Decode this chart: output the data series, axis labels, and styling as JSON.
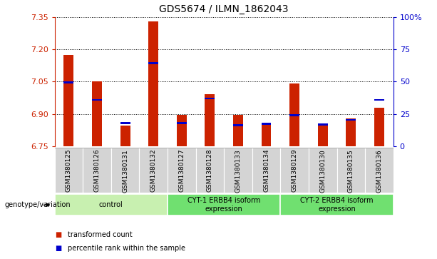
{
  "title": "GDS5674 / ILMN_1862043",
  "samples": [
    "GSM1380125",
    "GSM1380126",
    "GSM1380131",
    "GSM1380132",
    "GSM1380127",
    "GSM1380128",
    "GSM1380133",
    "GSM1380134",
    "GSM1380129",
    "GSM1380130",
    "GSM1380135",
    "GSM1380136"
  ],
  "red_values": [
    7.175,
    7.05,
    6.845,
    7.33,
    6.895,
    6.99,
    6.895,
    6.855,
    7.04,
    6.855,
    6.88,
    6.93
  ],
  "blue_values": [
    7.047,
    6.965,
    6.858,
    7.135,
    6.858,
    6.972,
    6.847,
    6.855,
    6.895,
    6.852,
    6.873,
    6.965
  ],
  "ylim_left": [
    6.75,
    7.35
  ],
  "yticks_left": [
    6.75,
    6.9,
    7.05,
    7.2,
    7.35
  ],
  "ylim_right": [
    0,
    100
  ],
  "yticks_right": [
    0,
    25,
    50,
    75,
    100
  ],
  "ytick_labels_right": [
    "0",
    "25",
    "50",
    "75",
    "100%"
  ],
  "groups": [
    {
      "label": "control",
      "start": 0,
      "end": 4,
      "color": "#c8f0b0"
    },
    {
      "label": "CYT-1 ERBB4 isoform\nexpression",
      "start": 4,
      "end": 8,
      "color": "#70e070"
    },
    {
      "label": "CYT-2 ERBB4 isoform\nexpression",
      "start": 8,
      "end": 12,
      "color": "#70e070"
    }
  ],
  "genotype_label": "genotype/variation",
  "red_color": "#cc2200",
  "blue_color": "#0000cc",
  "bar_width": 0.35,
  "base_value": 6.75,
  "legend_red": "transformed count",
  "legend_blue": "percentile rank within the sample",
  "blue_bar_thickness": 0.009,
  "xtick_bg": "#d4d4d4"
}
